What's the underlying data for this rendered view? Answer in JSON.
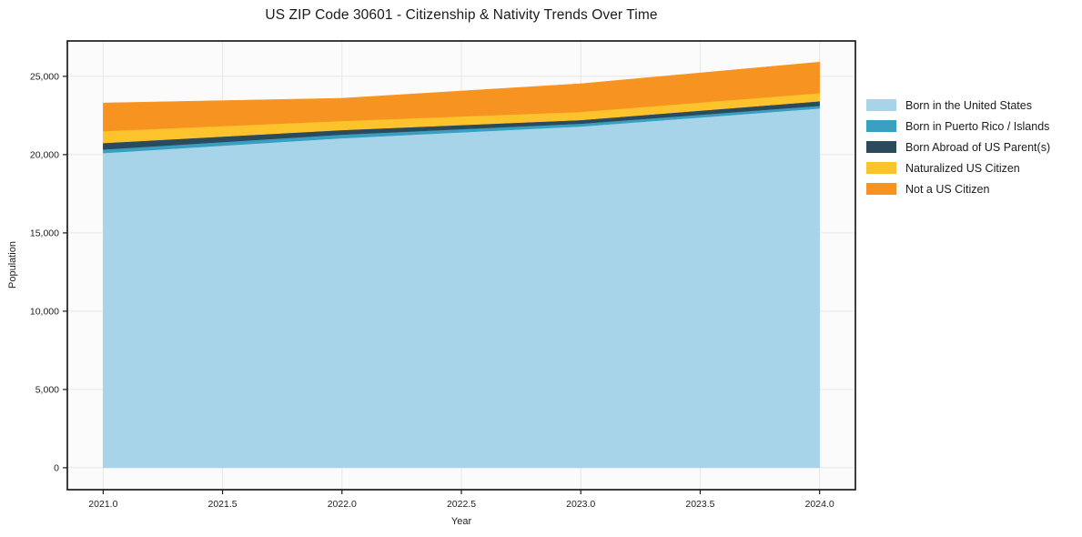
{
  "title": "US ZIP Code 30601 - Citizenship & Nativity Trends Over Time",
  "chart_data": {
    "type": "area",
    "stacked": true,
    "title": "US ZIP Code 30601 - Citizenship & Nativity Trends Over Time",
    "xlabel": "Year",
    "ylabel": "Population",
    "x": [
      2021,
      2022,
      2023,
      2024
    ],
    "series": [
      {
        "name": "Born in the United States",
        "color": "#A7D4E9",
        "values": [
          20100,
          21050,
          21800,
          22950
        ]
      },
      {
        "name": "Born in Puerto Rico / Islands",
        "color": "#389FC0",
        "values": [
          230,
          230,
          180,
          170
        ]
      },
      {
        "name": "Born Abroad of US Parent(s)",
        "color": "#2A4A5E",
        "values": [
          410,
          290,
          230,
          290
        ]
      },
      {
        "name": "Naturalized US Citizen",
        "color": "#FCC32C",
        "values": [
          760,
          580,
          520,
          520
        ]
      },
      {
        "name": "Not a US Citizen",
        "color": "#F79421",
        "values": [
          1800,
          1450,
          1800,
          1980
        ]
      }
    ],
    "totals": [
      23300,
      23600,
      24530,
      25910
    ],
    "xlim": [
      2020.85,
      2024.15
    ],
    "ylim": [
      -1400,
      27260
    ],
    "xticks": [
      2021.0,
      2021.5,
      2022.0,
      2022.5,
      2023.0,
      2023.5,
      2024.0
    ],
    "xtick_labels": [
      "2021.0",
      "2021.5",
      "2022.0",
      "2022.5",
      "2023.0",
      "2023.5",
      "2024.0"
    ],
    "yticks": [
      0,
      5000,
      10000,
      15000,
      20000,
      25000
    ],
    "ytick_labels": [
      "0",
      "5,000",
      "10,000",
      "15,000",
      "20,000",
      "25,000"
    ],
    "grid": true,
    "legend_position": "right",
    "legend": [
      "Born in the United States",
      "Born in Puerto Rico / Islands",
      "Born Abroad of US Parent(s)",
      "Naturalized US Citizen",
      "Not a US Citizen"
    ]
  },
  "colors": {
    "background": "#FFFFFF",
    "plot_background": "#FBFBFB",
    "grid": "#E7E7E7",
    "spine": "#1C1C1C",
    "text": "#1E1E1E"
  }
}
